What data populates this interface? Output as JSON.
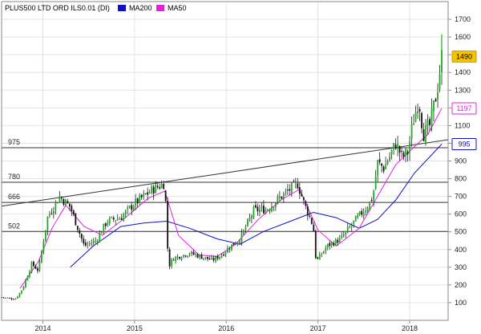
{
  "chart_data": {
    "type": "candlestick",
    "title": "PLUS500 LTD ORD ILS0.01 (DI)",
    "legend": [
      {
        "name": "MA200",
        "color": "#1010c8"
      },
      {
        "name": "MA50",
        "color": "#e020e0"
      }
    ],
    "legend_placement": "top-left",
    "grid": true,
    "y_axis_position": "right",
    "ylim": [
      0,
      1800
    ],
    "yticks": [
      100,
      200,
      300,
      400,
      500,
      600,
      700,
      800,
      900,
      1000,
      1100,
      1200,
      1300,
      1400,
      1500,
      1600,
      1700
    ],
    "x_ticks": [
      {
        "label": "2014",
        "t": 2014.0
      },
      {
        "label": "2015",
        "t": 2015.0
      },
      {
        "label": "2016",
        "t": 2016.0
      },
      {
        "label": "2017",
        "t": 2017.0
      },
      {
        "label": "2018",
        "t": 2018.0
      }
    ],
    "xlim": [
      2013.55,
      2018.42
    ],
    "horizontal_levels": [
      {
        "label": "975",
        "value": 975
      },
      {
        "label": "780",
        "value": 780
      },
      {
        "label": "666",
        "value": 666
      },
      {
        "label": "502",
        "value": 502
      }
    ],
    "trendline": {
      "from": {
        "t": 2013.55,
        "v": 645
      },
      "to": {
        "t": 2018.42,
        "v": 1020
      }
    },
    "badges": [
      {
        "label": "1490",
        "value": 1490,
        "style": "filled",
        "bg": "#f5c400",
        "fg": "#000000",
        "border": "#c89a00"
      },
      {
        "label": "1197",
        "value": 1197,
        "style": "outline",
        "bg": "#ffffff",
        "fg": "#e020e0",
        "border": "#e020e0"
      },
      {
        "label": "995",
        "value": 995,
        "style": "outline",
        "bg": "#ffffff",
        "fg": "#1010c8",
        "border": "#1010c8"
      }
    ],
    "price_path": [
      [
        2013.55,
        130
      ],
      [
        2013.7,
        120
      ],
      [
        2013.78,
        180
      ],
      [
        2013.88,
        320
      ],
      [
        2013.95,
        280
      ],
      [
        2014.05,
        580
      ],
      [
        2014.18,
        700
      ],
      [
        2014.3,
        640
      ],
      [
        2014.45,
        420
      ],
      [
        2014.58,
        450
      ],
      [
        2014.7,
        560
      ],
      [
        2014.85,
        580
      ],
      [
        2015.0,
        660
      ],
      [
        2015.2,
        740
      ],
      [
        2015.33,
        775
      ],
      [
        2015.37,
        300
      ],
      [
        2015.42,
        350
      ],
      [
        2015.6,
        380
      ],
      [
        2015.85,
        340
      ],
      [
        2015.95,
        370
      ],
      [
        2016.05,
        420
      ],
      [
        2016.15,
        460
      ],
      [
        2016.3,
        620
      ],
      [
        2016.45,
        630
      ],
      [
        2016.6,
        700
      ],
      [
        2016.72,
        750
      ],
      [
        2016.78,
        770
      ],
      [
        2016.85,
        660
      ],
      [
        2016.95,
        530
      ],
      [
        2016.98,
        330
      ],
      [
        2017.1,
        420
      ],
      [
        2017.25,
        460
      ],
      [
        2017.4,
        560
      ],
      [
        2017.55,
        650
      ],
      [
        2017.6,
        700
      ],
      [
        2017.65,
        890
      ],
      [
        2017.72,
        860
      ],
      [
        2017.85,
        1000
      ],
      [
        2017.92,
        920
      ],
      [
        2017.98,
        950
      ],
      [
        2018.03,
        1100
      ],
      [
        2018.1,
        1250
      ],
      [
        2018.15,
        1050
      ],
      [
        2018.22,
        1100
      ],
      [
        2018.3,
        1300
      ],
      [
        2018.35,
        1490
      ]
    ],
    "ma50_path": [
      [
        2013.75,
        180
      ],
      [
        2013.95,
        330
      ],
      [
        2014.1,
        520
      ],
      [
        2014.25,
        650
      ],
      [
        2014.45,
        530
      ],
      [
        2014.65,
        480
      ],
      [
        2014.9,
        580
      ],
      [
        2015.15,
        690
      ],
      [
        2015.33,
        730
      ],
      [
        2015.48,
        480
      ],
      [
        2015.7,
        370
      ],
      [
        2015.9,
        360
      ],
      [
        2016.1,
        430
      ],
      [
        2016.35,
        570
      ],
      [
        2016.6,
        680
      ],
      [
        2016.8,
        740
      ],
      [
        2017.0,
        510
      ],
      [
        2017.2,
        420
      ],
      [
        2017.45,
        520
      ],
      [
        2017.65,
        700
      ],
      [
        2017.85,
        880
      ],
      [
        2018.05,
        980
      ],
      [
        2018.2,
        1050
      ],
      [
        2018.35,
        1197
      ]
    ],
    "ma200_path": [
      [
        2014.3,
        300
      ],
      [
        2014.55,
        420
      ],
      [
        2014.85,
        530
      ],
      [
        2015.1,
        550
      ],
      [
        2015.35,
        560
      ],
      [
        2015.6,
        520
      ],
      [
        2015.9,
        460
      ],
      [
        2016.15,
        430
      ],
      [
        2016.4,
        500
      ],
      [
        2016.7,
        560
      ],
      [
        2016.95,
        610
      ],
      [
        2017.2,
        580
      ],
      [
        2017.45,
        520
      ],
      [
        2017.65,
        570
      ],
      [
        2017.85,
        680
      ],
      [
        2018.05,
        830
      ],
      [
        2018.35,
        995
      ]
    ]
  }
}
